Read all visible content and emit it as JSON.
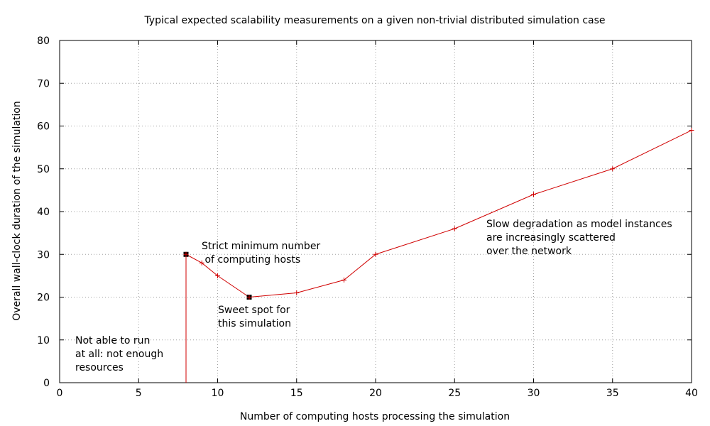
{
  "chart_data": {
    "type": "line",
    "title": "Typical expected scalability measurements on a given non-trivial distributed simulation case",
    "xlabel": "Number of computing hosts processing the simulation",
    "ylabel": "Overall wall-clock duration of the simulation",
    "xlim": [
      0,
      40
    ],
    "ylim": [
      0,
      80
    ],
    "xticks": [
      0,
      5,
      10,
      15,
      20,
      25,
      30,
      35,
      40
    ],
    "yticks": [
      0,
      10,
      20,
      30,
      40,
      50,
      60,
      70,
      80
    ],
    "grid": true,
    "line_color": "#d00000",
    "highlight_color": "#000000",
    "series": [
      {
        "x": [
          8,
          9,
          10,
          12,
          15,
          18,
          20,
          25,
          30,
          35,
          40
        ],
        "y": [
          30,
          28,
          25,
          20,
          21,
          24,
          30,
          36,
          44,
          50,
          59
        ]
      }
    ],
    "vertical_line": {
      "x": 8,
      "y_from": 0,
      "y_to": 30
    },
    "highlighted_points": [
      {
        "x": 8,
        "y": 30
      },
      {
        "x": 12,
        "y": 20
      }
    ],
    "annotations": [
      {
        "lines": [
          "Not able to run",
          "at all: not enough",
          "resources"
        ]
      },
      {
        "lines": [
          "Strict minimum number",
          " of computing hosts"
        ]
      },
      {
        "lines": [
          "Sweet spot for",
          "this simulation"
        ]
      },
      {
        "lines": [
          "Slow degradation as model instances",
          "are increasingly scattered",
          "over the network"
        ]
      }
    ]
  }
}
